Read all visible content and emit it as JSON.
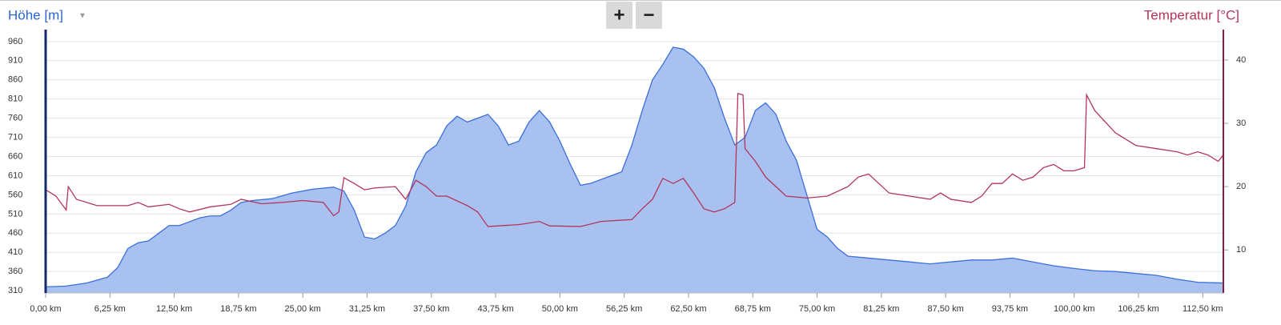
{
  "controls": {
    "zoom_in": "+",
    "zoom_out": "−"
  },
  "chart_data": {
    "type": "area-line",
    "ylabel": "Höhe [m]",
    "y2label": "Temperatur [°C]",
    "xlim": [
      0,
      114.5
    ],
    "ylim": [
      304,
      991
    ],
    "y2lim": [
      3.2,
      44.8
    ],
    "grid": true,
    "xticks": [
      {
        "value": 0,
        "label": "0,00 km"
      },
      {
        "value": 6.25,
        "label": "6,25 km"
      },
      {
        "value": 12.5,
        "label": "12,50 km"
      },
      {
        "value": 18.75,
        "label": "18,75 km"
      },
      {
        "value": 25,
        "label": "25,00 km"
      },
      {
        "value": 31.25,
        "label": "31,25 km"
      },
      {
        "value": 37.5,
        "label": "37,50 km"
      },
      {
        "value": 43.75,
        "label": "43,75 km"
      },
      {
        "value": 50,
        "label": "50,00 km"
      },
      {
        "value": 56.25,
        "label": "56,25 km"
      },
      {
        "value": 62.5,
        "label": "62,50 km"
      },
      {
        "value": 68.75,
        "label": "68,75 km"
      },
      {
        "value": 75,
        "label": "75,00 km"
      },
      {
        "value": 81.25,
        "label": "81,25 km"
      },
      {
        "value": 87.5,
        "label": "87,50 km"
      },
      {
        "value": 93.75,
        "label": "93,75 km"
      },
      {
        "value": 100,
        "label": "100,00 km"
      },
      {
        "value": 106.25,
        "label": "106,25 km"
      },
      {
        "value": 112.5,
        "label": "112,50 km"
      }
    ],
    "yticks": [
      310,
      360,
      410,
      460,
      510,
      560,
      610,
      660,
      710,
      760,
      810,
      860,
      910,
      960
    ],
    "y2ticks": [
      10,
      20,
      30,
      40
    ],
    "series": [
      {
        "kind": "area",
        "color": "#3b6fd9",
        "fill": "#a9c1f1",
        "x": [
          0,
          2,
          4,
          6,
          7,
          8,
          9,
          10,
          11,
          12,
          13,
          14,
          15,
          16,
          17,
          18,
          19,
          20,
          22,
          24,
          26,
          28,
          29,
          30,
          31,
          32,
          33,
          34,
          35,
          36,
          37,
          38,
          39,
          40,
          41,
          42,
          43,
          44,
          45,
          46,
          47,
          48,
          49,
          50,
          51,
          52,
          53,
          54,
          55,
          56,
          57,
          58,
          59,
          60,
          61,
          62,
          63,
          64,
          65,
          66,
          67,
          68,
          69,
          70,
          71,
          72,
          73,
          74,
          75,
          76,
          77,
          78,
          80,
          82,
          84,
          86,
          88,
          90,
          92,
          94,
          96,
          98,
          100,
          102,
          104,
          106,
          108,
          110,
          112,
          114.5
        ],
        "values": [
          320,
          322,
          330,
          345,
          370,
          420,
          435,
          440,
          460,
          480,
          480,
          490,
          500,
          505,
          505,
          520,
          540,
          545,
          550,
          565,
          575,
          580,
          570,
          520,
          450,
          445,
          460,
          480,
          530,
          620,
          670,
          690,
          740,
          765,
          750,
          760,
          770,
          740,
          690,
          700,
          750,
          780,
          750,
          700,
          640,
          585,
          590,
          600,
          610,
          620,
          690,
          780,
          860,
          900,
          945,
          940,
          920,
          890,
          840,
          760,
          690,
          710,
          780,
          800,
          770,
          700,
          650,
          560,
          470,
          450,
          420,
          400,
          395,
          390,
          385,
          380,
          385,
          390,
          390,
          395,
          385,
          375,
          368,
          362,
          360,
          355,
          350,
          340,
          332,
          330
        ]
      },
      {
        "kind": "line",
        "axis": "y2",
        "color": "#b2355a",
        "x": [
          0,
          1,
          2,
          2.2,
          3,
          5,
          8,
          9,
          10,
          12,
          13,
          14,
          16,
          18,
          19,
          21,
          23,
          25,
          27,
          28,
          28.5,
          29,
          30,
          31,
          32,
          34,
          35,
          36,
          37,
          38,
          39,
          41,
          42,
          43,
          44,
          46,
          48,
          49,
          52,
          54,
          57,
          58,
          59,
          60,
          61,
          62,
          63,
          64,
          65,
          66,
          67,
          67.3,
          67.8,
          68,
          69,
          70,
          71,
          72,
          74,
          76,
          78,
          79,
          80,
          81,
          82,
          84,
          86,
          87,
          88,
          90,
          91,
          92,
          93,
          94,
          95,
          96,
          97,
          98,
          99,
          100,
          101,
          101.2,
          102,
          104,
          105,
          106,
          108,
          110,
          111,
          112,
          113,
          114,
          114.5
        ],
        "values": [
          19.5,
          18.5,
          16.3,
          20,
          18,
          17,
          17,
          17.5,
          16.8,
          17.2,
          16.5,
          16,
          16.8,
          17.2,
          18,
          17.3,
          17.5,
          17.8,
          17.5,
          15.4,
          16,
          21.4,
          20.5,
          19.5,
          19.8,
          20,
          18,
          21,
          20,
          18.5,
          18.5,
          17,
          16,
          13.7,
          13.8,
          14,
          14.5,
          13.8,
          13.7,
          14.5,
          14.8,
          16.5,
          18,
          21.3,
          20.5,
          21.3,
          19,
          16.5,
          16,
          16.5,
          17.5,
          34.7,
          34.5,
          26,
          24,
          21.5,
          20,
          18.5,
          18.2,
          18.5,
          20,
          21.5,
          22,
          20.5,
          19,
          18.5,
          18,
          19,
          18,
          17.5,
          18.5,
          20.5,
          20.5,
          22,
          21,
          21.5,
          23,
          23.5,
          22.5,
          22.5,
          23,
          34.5,
          32,
          28.5,
          27.5,
          26.5,
          26,
          25.5,
          25,
          25.5,
          25,
          24,
          25
        ]
      }
    ]
  }
}
